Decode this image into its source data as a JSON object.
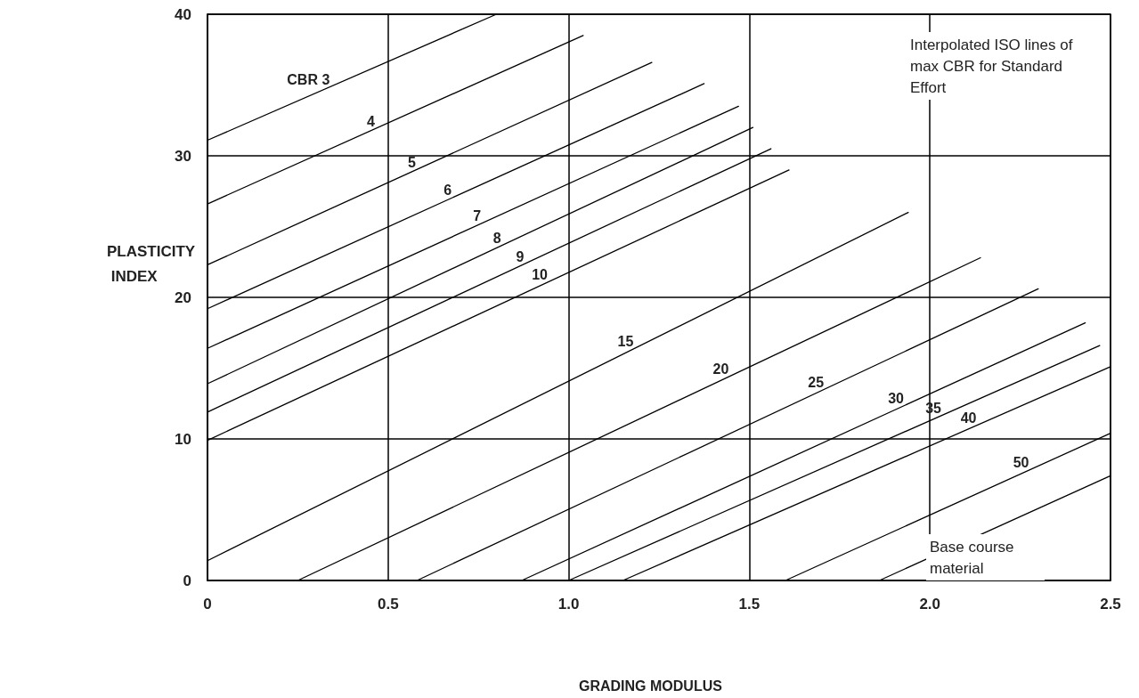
{
  "chart_data": {
    "type": "line",
    "xlabel": "GRADING MODULUS",
    "ylabel": "PLASTICITY INDEX",
    "xlim": [
      0,
      2.5
    ],
    "ylim": [
      0,
      40
    ],
    "xticks": [
      0,
      0.5,
      {
        "value": 1,
        "label": "1.0"
      },
      1.5,
      {
        "value": 2,
        "label": "2.0"
      },
      2.5
    ],
    "yticks": [
      0,
      10,
      20,
      30,
      40
    ],
    "grid": true,
    "marker": "none",
    "line_style": "solid",
    "series": [
      {
        "name": "CBR 3",
        "color": "#000000",
        "x": [
          0,
          0.8
        ],
        "values": [
          31.1,
          40
        ]
      },
      {
        "name": "4",
        "color": "#000000",
        "x": [
          0,
          1.04
        ],
        "values": [
          26.6,
          38.5
        ]
      },
      {
        "name": "5",
        "color": "#000000",
        "x": [
          0,
          1.23
        ],
        "values": [
          22.3,
          36.6
        ]
      },
      {
        "name": "6",
        "color": "#000000",
        "x": [
          0,
          1.375
        ],
        "values": [
          19.2,
          35.1
        ]
      },
      {
        "name": "7",
        "color": "#000000",
        "x": [
          0,
          1.47
        ],
        "values": [
          16.4,
          33.5
        ]
      },
      {
        "name": "8",
        "color": "#000000",
        "x": [
          0,
          1.51
        ],
        "values": [
          13.9,
          32
        ]
      },
      {
        "name": "9",
        "color": "#000000",
        "x": [
          0,
          1.56
        ],
        "values": [
          11.9,
          30.5
        ]
      },
      {
        "name": "10",
        "color": "#000000",
        "x": [
          0,
          1.61
        ],
        "values": [
          9.9,
          29
        ]
      },
      {
        "name": "15",
        "color": "#000000",
        "x": [
          0,
          1.94
        ],
        "values": [
          1.4,
          26
        ]
      },
      {
        "name": "20",
        "color": "#000000",
        "x": [
          0.25,
          2.14
        ],
        "values": [
          0,
          22.8
        ]
      },
      {
        "name": "25",
        "color": "#000000",
        "x": [
          0.58,
          2.3
        ],
        "values": [
          0,
          20.6
        ]
      },
      {
        "name": "30",
        "color": "#000000",
        "x": [
          0.87,
          2.43
        ],
        "values": [
          0,
          18.2
        ]
      },
      {
        "name": "35",
        "color": "#000000",
        "x": [
          1.0,
          2.47
        ],
        "values": [
          0,
          16.6
        ]
      },
      {
        "name": "40",
        "color": "#000000",
        "x": [
          1.15,
          2.5
        ],
        "values": [
          0,
          15.1
        ]
      },
      {
        "name": "50",
        "color": "#000000",
        "x": [
          1.6,
          2.5
        ],
        "values": [
          0,
          10.4
        ]
      },
      {
        "color": "#000000",
        "x": [
          1.86,
          2.5
        ],
        "values": [
          0,
          7.4
        ]
      }
    ],
    "annotations": [
      "Interpolated ISO lines of max CBR for Standard Effort",
      "Base course material"
    ]
  }
}
